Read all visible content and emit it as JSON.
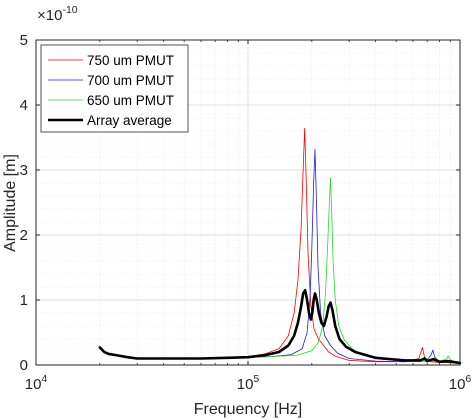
{
  "chart_data": {
    "type": "line",
    "xlabel": "Frequency [Hz]",
    "ylabel": "Amplitude [m]",
    "x_scale": "log",
    "xlim": [
      10000,
      1000000
    ],
    "ylim": [
      0,
      5
    ],
    "y_multiplier": "×10",
    "y_multiplier_exponent": "-10",
    "x_ticks": [
      {
        "value": 10000,
        "base": "10",
        "exp": "4"
      },
      {
        "value": 100000,
        "base": "10",
        "exp": "5"
      },
      {
        "value": 1000000,
        "base": "10",
        "exp": "6"
      }
    ],
    "y_ticks": [
      {
        "value": 0,
        "label": "0"
      },
      {
        "value": 1,
        "label": "1"
      },
      {
        "value": 2,
        "label": "2"
      },
      {
        "value": 3,
        "label": "3"
      },
      {
        "value": 4,
        "label": "4"
      },
      {
        "value": 5,
        "label": "5"
      }
    ],
    "grid": true,
    "minor_grid": true,
    "legend_position": "top-left",
    "series": [
      {
        "name": "750 um PMUT",
        "color": "#ff0000",
        "width": 0.8,
        "points": [
          [
            20000,
            0.27
          ],
          [
            21000,
            0.2
          ],
          [
            22000,
            0.17
          ],
          [
            24000,
            0.15
          ],
          [
            27000,
            0.12
          ],
          [
            30000,
            0.1
          ],
          [
            35000,
            0.1
          ],
          [
            40000,
            0.1
          ],
          [
            50000,
            0.11
          ],
          [
            60000,
            0.1
          ],
          [
            80000,
            0.11
          ],
          [
            100000,
            0.13
          ],
          [
            120000,
            0.17
          ],
          [
            140000,
            0.25
          ],
          [
            155000,
            0.45
          ],
          [
            165000,
            0.8
          ],
          [
            172000,
            1.3
          ],
          [
            178000,
            2.1
          ],
          [
            182000,
            3.0
          ],
          [
            185000,
            3.64
          ],
          [
            188000,
            2.9
          ],
          [
            192000,
            1.7
          ],
          [
            198000,
            0.9
          ],
          [
            205000,
            0.55
          ],
          [
            215000,
            0.4
          ],
          [
            225000,
            0.32
          ],
          [
            240000,
            0.2
          ],
          [
            260000,
            0.13
          ],
          [
            300000,
            0.07
          ],
          [
            400000,
            0.05
          ],
          [
            550000,
            0.05
          ],
          [
            640000,
            0.1
          ],
          [
            665000,
            0.27
          ],
          [
            680000,
            0.12
          ],
          [
            720000,
            0.05
          ],
          [
            800000,
            0.04
          ],
          [
            1000000,
            0.03
          ]
        ]
      },
      {
        "name": "700 um PMUT",
        "color": "#1f1fd6",
        "width": 0.8,
        "points": [
          [
            20000,
            0.26
          ],
          [
            21000,
            0.2
          ],
          [
            22000,
            0.17
          ],
          [
            24000,
            0.15
          ],
          [
            27000,
            0.12
          ],
          [
            30000,
            0.1
          ],
          [
            35000,
            0.1
          ],
          [
            40000,
            0.1
          ],
          [
            50000,
            0.11
          ],
          [
            60000,
            0.1
          ],
          [
            80000,
            0.11
          ],
          [
            100000,
            0.12
          ],
          [
            130000,
            0.13
          ],
          [
            160000,
            0.16
          ],
          [
            180000,
            0.25
          ],
          [
            190000,
            0.5
          ],
          [
            196000,
            1.0
          ],
          [
            200000,
            1.8
          ],
          [
            204000,
            2.8
          ],
          [
            207000,
            3.32
          ],
          [
            210000,
            2.6
          ],
          [
            214000,
            1.5
          ],
          [
            220000,
            0.8
          ],
          [
            230000,
            0.45
          ],
          [
            245000,
            0.3
          ],
          [
            265000,
            0.18
          ],
          [
            300000,
            0.1
          ],
          [
            400000,
            0.06
          ],
          [
            550000,
            0.05
          ],
          [
            700000,
            0.08
          ],
          [
            730000,
            0.15
          ],
          [
            745000,
            0.23
          ],
          [
            760000,
            0.12
          ],
          [
            800000,
            0.05
          ],
          [
            900000,
            0.04
          ],
          [
            1000000,
            0.03
          ]
        ]
      },
      {
        "name": "650 um PMUT",
        "color": "#2bd62b",
        "width": 0.8,
        "points": [
          [
            20000,
            0.25
          ],
          [
            21000,
            0.19
          ],
          [
            22000,
            0.16
          ],
          [
            24000,
            0.14
          ],
          [
            27000,
            0.12
          ],
          [
            30000,
            0.1
          ],
          [
            35000,
            0.1
          ],
          [
            40000,
            0.1
          ],
          [
            50000,
            0.11
          ],
          [
            60000,
            0.1
          ],
          [
            80000,
            0.11
          ],
          [
            100000,
            0.12
          ],
          [
            130000,
            0.13
          ],
          [
            170000,
            0.15
          ],
          [
            200000,
            0.22
          ],
          [
            215000,
            0.35
          ],
          [
            225000,
            0.6
          ],
          [
            232000,
            1.1
          ],
          [
            238000,
            1.9
          ],
          [
            242000,
            2.5
          ],
          [
            245000,
            2.88
          ],
          [
            248000,
            2.4
          ],
          [
            252000,
            1.6
          ],
          [
            258000,
            1.0
          ],
          [
            268000,
            0.6
          ],
          [
            285000,
            0.38
          ],
          [
            310000,
            0.25
          ],
          [
            350000,
            0.15
          ],
          [
            400000,
            0.1
          ],
          [
            500000,
            0.07
          ],
          [
            650000,
            0.05
          ],
          [
            800000,
            0.06
          ],
          [
            860000,
            0.09
          ],
          [
            880000,
            0.14
          ],
          [
            900000,
            0.08
          ],
          [
            950000,
            0.05
          ],
          [
            1000000,
            0.03
          ]
        ]
      },
      {
        "name": "Array average",
        "color": "#000000",
        "width": 2.6,
        "points": [
          [
            20000,
            0.27
          ],
          [
            21000,
            0.2
          ],
          [
            22000,
            0.17
          ],
          [
            24000,
            0.15
          ],
          [
            27000,
            0.12
          ],
          [
            30000,
            0.1
          ],
          [
            35000,
            0.1
          ],
          [
            40000,
            0.1
          ],
          [
            50000,
            0.1
          ],
          [
            60000,
            0.1
          ],
          [
            80000,
            0.11
          ],
          [
            100000,
            0.12
          ],
          [
            120000,
            0.15
          ],
          [
            140000,
            0.2
          ],
          [
            155000,
            0.3
          ],
          [
            165000,
            0.45
          ],
          [
            172000,
            0.65
          ],
          [
            178000,
            0.9
          ],
          [
            182000,
            1.1
          ],
          [
            186000,
            1.15
          ],
          [
            190000,
            1.0
          ],
          [
            194000,
            0.8
          ],
          [
            198000,
            0.7
          ],
          [
            201000,
            0.8
          ],
          [
            204000,
            1.0
          ],
          [
            207000,
            1.1
          ],
          [
            211000,
            1.0
          ],
          [
            216000,
            0.8
          ],
          [
            222000,
            0.65
          ],
          [
            228000,
            0.6
          ],
          [
            235000,
            0.75
          ],
          [
            240000,
            0.9
          ],
          [
            245000,
            0.96
          ],
          [
            250000,
            0.85
          ],
          [
            258000,
            0.6
          ],
          [
            270000,
            0.4
          ],
          [
            290000,
            0.28
          ],
          [
            320000,
            0.2
          ],
          [
            400000,
            0.11
          ],
          [
            550000,
            0.07
          ],
          [
            650000,
            0.07
          ],
          [
            680000,
            0.1
          ],
          [
            700000,
            0.06
          ],
          [
            750000,
            0.09
          ],
          [
            800000,
            0.05
          ],
          [
            880000,
            0.06
          ],
          [
            1000000,
            0.03
          ]
        ]
      }
    ]
  }
}
